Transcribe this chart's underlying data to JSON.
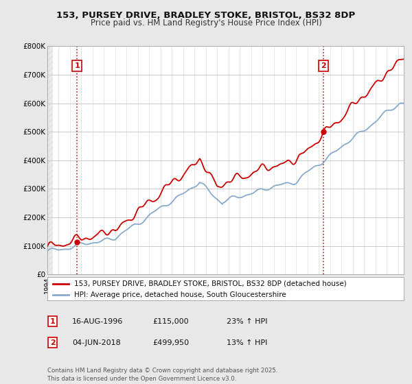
{
  "title_line1": "153, PURSEY DRIVE, BRADLEY STOKE, BRISTOL, BS32 8DP",
  "title_line2": "Price paid vs. HM Land Registry's House Price Index (HPI)",
  "title_fontsize": 9.5,
  "subtitle_fontsize": 8.5,
  "bg_color": "#e8e8e8",
  "plot_bg_color": "#ffffff",
  "grid_color": "#cccccc",
  "red_color": "#cc0000",
  "blue_color": "#88aacc",
  "ylim": [
    0,
    800000
  ],
  "yticks": [
    0,
    100000,
    200000,
    300000,
    400000,
    500000,
    600000,
    700000,
    800000
  ],
  "ytick_labels": [
    "£0",
    "£100K",
    "£200K",
    "£300K",
    "£400K",
    "£500K",
    "£600K",
    "£700K",
    "£800K"
  ],
  "legend_label_red": "153, PURSEY DRIVE, BRADLEY STOKE, BRISTOL, BS32 8DP (detached house)",
  "legend_label_blue": "HPI: Average price, detached house, South Gloucestershire",
  "annotation1_date": "16-AUG-1996",
  "annotation1_price": "£115,000",
  "annotation1_hpi": "23% ↑ HPI",
  "annotation2_date": "04-JUN-2018",
  "annotation2_price": "£499,950",
  "annotation2_hpi": "13% ↑ HPI",
  "footnote": "Contains HM Land Registry data © Crown copyright and database right 2025.\nThis data is licensed under the Open Government Licence v3.0.",
  "marker1_year": 1996.62,
  "marker1_price": 115000,
  "marker2_year": 2018.42,
  "marker2_price": 499950,
  "dotted_line1_x": 1996.62,
  "dotted_line2_x": 2018.42,
  "xlim_left": 1994.0,
  "xlim_right": 2025.5
}
